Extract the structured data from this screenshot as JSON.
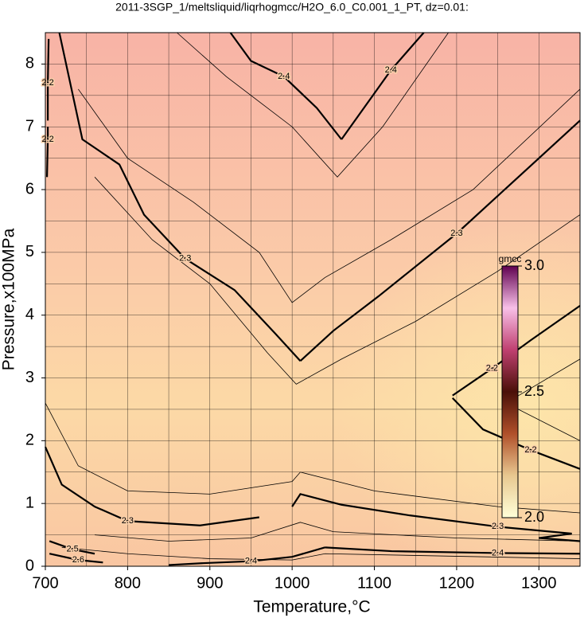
{
  "chart_data": {
    "type": "contour",
    "title": "2011-3SGP_1/meltsliquid/liqrhogmcc/H2O_6.0_C0.001_1_PT, dz=0.01:",
    "x_label": "Temperature,°C",
    "y_label": "Pressure,x100MPa",
    "xlim": [
      700,
      1350
    ],
    "ylim": [
      0,
      8.5
    ],
    "xticks": [
      700,
      800,
      900,
      1000,
      1100,
      1200,
      1300
    ],
    "yticks": [
      0,
      1,
      2,
      3,
      4,
      5,
      6,
      7,
      8
    ],
    "xgrid": [
      700,
      750,
      800,
      850,
      900,
      950,
      1000,
      1050,
      1100,
      1150,
      1200,
      1250,
      1300,
      1350
    ],
    "ygrid": [
      0,
      0.5,
      1,
      1.5,
      2,
      2.5,
      3,
      3.5,
      4,
      4.5,
      5,
      5.5,
      6,
      6.5,
      7,
      7.5,
      8,
      8.5
    ],
    "grid": true,
    "contours": [
      {
        "level": 2.4,
        "major": true,
        "x": [
          925,
          950,
          990,
          1030,
          1060
        ],
        "y": [
          8.5,
          8.05,
          7.8,
          7.3,
          6.8
        ]
      },
      {
        "level": 2.4,
        "major": true,
        "x": [
          1060,
          1090,
          1120,
          1160
        ],
        "y": [
          6.8,
          7.35,
          7.9,
          8.5
        ]
      },
      {
        "level": 2.3,
        "major": true,
        "x": [
          717,
          745,
          790,
          820,
          870,
          930,
          980,
          1010
        ],
        "y": [
          8.5,
          6.8,
          6.4,
          5.6,
          4.9,
          4.4,
          3.7,
          3.27
        ]
      },
      {
        "level": 2.3,
        "major": true,
        "x": [
          1010,
          1050,
          1105,
          1200,
          1300,
          1350
        ],
        "y": [
          3.27,
          3.75,
          4.3,
          5.3,
          6.5,
          7.1
        ]
      },
      {
        "level": 2.3,
        "major": true,
        "x": [
          700,
          720,
          760,
          800,
          888,
          960
        ],
        "y": [
          1.9,
          1.3,
          0.95,
          0.72,
          0.65,
          0.78
        ]
      },
      {
        "level": 2.3,
        "major": true,
        "x": [
          1000,
          1010,
          1060,
          1143,
          1250,
          1340,
          1300,
          1350
        ],
        "y": [
          0.95,
          1.15,
          0.98,
          0.81,
          0.63,
          0.52,
          0.45,
          0.4
        ]
      },
      {
        "level": 2.2,
        "major": true,
        "x": [
          1350,
          1290,
          1243,
          1195
        ],
        "y": [
          4.15,
          3.6,
          3.15,
          2.72
        ]
      },
      {
        "level": 2.2,
        "major": true,
        "x": [
          1195,
          1232,
          1290,
          1350
        ],
        "y": [
          2.68,
          2.18,
          1.85,
          1.55
        ]
      },
      {
        "level": 2.4,
        "major": true,
        "x": [
          850,
          893,
          950,
          1000,
          1040
        ],
        "y": [
          0.02,
          0.05,
          0.08,
          0.15,
          0.3
        ]
      },
      {
        "level": 2.4,
        "major": true,
        "x": [
          1040,
          1121,
          1250,
          1350
        ],
        "y": [
          0.3,
          0.24,
          0.21,
          0.2
        ]
      },
      {
        "level": 2.2,
        "major": true,
        "x": [
          704,
          703,
          703
        ],
        "y": [
          8.4,
          7.7,
          7.1
        ]
      },
      {
        "level": 2.2,
        "major": true,
        "x": [
          703,
          703,
          702
        ],
        "y": [
          7.0,
          6.8,
          6.2
        ]
      },
      {
        "level": 2.5,
        "major": true,
        "x": [
          705,
          733,
          760
        ],
        "y": [
          0.4,
          0.27,
          0.2
        ]
      },
      {
        "level": 2.6,
        "major": true,
        "x": [
          705,
          740,
          770
        ],
        "y": [
          0.2,
          0.1,
          0.06
        ]
      },
      {
        "level": 2.35,
        "major": false,
        "x": [
          860,
          920,
          1000,
          1055,
          1110,
          1190
        ],
        "y": [
          8.5,
          7.8,
          7.0,
          6.2,
          7.0,
          8.5
        ]
      },
      {
        "level": 2.25,
        "major": false,
        "x": [
          760,
          830,
          900,
          970,
          1005,
          1060,
          1150,
          1250,
          1350
        ],
        "y": [
          6.2,
          5.2,
          4.5,
          3.4,
          2.9,
          3.3,
          3.9,
          4.7,
          5.6
        ]
      },
      {
        "level": 2.25,
        "major": false,
        "x": [
          700,
          740,
          800,
          900,
          1000,
          1010,
          1100,
          1250,
          1350
        ],
        "y": [
          2.6,
          1.6,
          1.2,
          1.15,
          1.35,
          1.5,
          1.2,
          0.95,
          0.85
        ]
      },
      {
        "level": 2.35,
        "major": false,
        "x": [
          760,
          850,
          950,
          1010,
          1050,
          1200,
          1350
        ],
        "y": [
          0.5,
          0.4,
          0.45,
          0.7,
          0.55,
          0.45,
          0.4
        ]
      },
      {
        "level": 2.45,
        "major": false,
        "x": [
          720,
          800,
          900,
          1000,
          1040,
          1350
        ],
        "y": [
          0.3,
          0.2,
          0.12,
          0.1,
          0.2,
          0.12
        ]
      },
      {
        "level": 2.23,
        "major": false,
        "x": [
          1350,
          1260,
          1350
        ],
        "y": [
          3.3,
          2.6,
          2.0
        ]
      },
      {
        "level": 2.27,
        "major": false,
        "x": [
          740,
          800,
          880,
          960,
          1000,
          1040,
          1120,
          1220,
          1350
        ],
        "y": [
          7.6,
          6.5,
          5.8,
          5.0,
          4.2,
          4.6,
          5.2,
          6.0,
          7.6
        ]
      }
    ],
    "colorbar": {
      "label": "gmcc",
      "range": [
        2,
        3
      ],
      "ticks": [
        {
          "value": 3,
          "label": "3.0"
        },
        {
          "value": 2.5,
          "label": "2.5"
        },
        {
          "value": 2,
          "label": "2.0"
        }
      ],
      "colors": [
        "#ffffd8",
        "#e8c890",
        "#b0502a",
        "#4a1008",
        "#c04070",
        "#f8c0e8",
        "#600050"
      ]
    }
  }
}
